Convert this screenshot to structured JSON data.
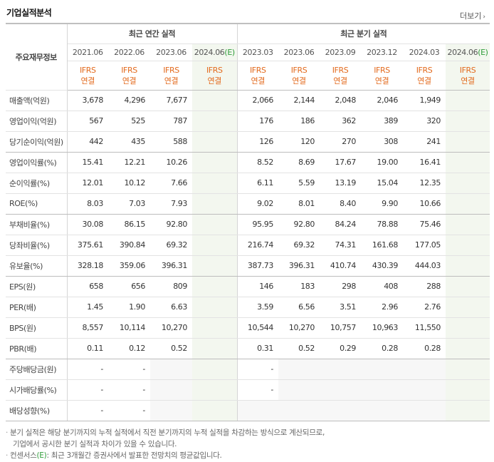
{
  "header": {
    "title": "기업실적분석",
    "more_label": "더보기"
  },
  "table": {
    "corner_label": "주요재무정보",
    "annual_group": "최근 연간 실적",
    "quarter_group": "최근 분기 실적",
    "annual_periods": [
      "2021.06",
      "2022.06",
      "2023.06",
      "2024.06"
    ],
    "quarter_periods": [
      "2023.03",
      "2023.06",
      "2023.09",
      "2023.12",
      "2024.03",
      "2024.06"
    ],
    "estimate_mark": "(E)",
    "ifrs_label": "IFRS",
    "basis_label": "연결",
    "rows": [
      {
        "label": "매출액(억원)",
        "annual": [
          "3,678",
          "4,296",
          "7,677",
          ""
        ],
        "quarter": [
          "2,066",
          "2,144",
          "2,048",
          "2,046",
          "1,949",
          ""
        ]
      },
      {
        "label": "영업이익(억원)",
        "annual": [
          "567",
          "525",
          "787",
          ""
        ],
        "quarter": [
          "176",
          "186",
          "362",
          "389",
          "320",
          ""
        ]
      },
      {
        "label": "당기순이익(억원)",
        "annual": [
          "442",
          "435",
          "588",
          ""
        ],
        "quarter": [
          "126",
          "120",
          "270",
          "308",
          "241",
          ""
        ]
      },
      {
        "label": "영업이익률(%)",
        "annual": [
          "15.41",
          "12.21",
          "10.26",
          ""
        ],
        "quarter": [
          "8.52",
          "8.69",
          "17.67",
          "19.00",
          "16.41",
          ""
        ]
      },
      {
        "label": "순이익률(%)",
        "annual": [
          "12.01",
          "10.12",
          "7.66",
          ""
        ],
        "quarter": [
          "6.11",
          "5.59",
          "13.19",
          "15.04",
          "12.35",
          ""
        ]
      },
      {
        "label": "ROE(%)",
        "annual": [
          "8.03",
          "7.03",
          "7.93",
          ""
        ],
        "quarter": [
          "9.02",
          "8.01",
          "8.40",
          "9.90",
          "10.66",
          ""
        ]
      },
      {
        "label": "부채비율(%)",
        "annual": [
          "30.08",
          "86.15",
          "92.80",
          ""
        ],
        "quarter": [
          "95.95",
          "92.80",
          "84.24",
          "78.88",
          "75.46",
          ""
        ]
      },
      {
        "label": "당좌비율(%)",
        "annual": [
          "375.61",
          "390.84",
          "69.32",
          ""
        ],
        "quarter": [
          "216.74",
          "69.32",
          "74.31",
          "161.68",
          "177.05",
          ""
        ]
      },
      {
        "label": "유보율(%)",
        "annual": [
          "328.18",
          "359.06",
          "396.31",
          ""
        ],
        "quarter": [
          "387.73",
          "396.31",
          "410.74",
          "430.39",
          "444.03",
          ""
        ]
      },
      {
        "label": "EPS(원)",
        "annual": [
          "658",
          "656",
          "809",
          ""
        ],
        "quarter": [
          "146",
          "183",
          "298",
          "408",
          "288",
          ""
        ]
      },
      {
        "label": "PER(배)",
        "annual": [
          "1.45",
          "1.90",
          "6.63",
          ""
        ],
        "quarter": [
          "3.59",
          "6.56",
          "3.51",
          "2.96",
          "2.76",
          ""
        ]
      },
      {
        "label": "BPS(원)",
        "annual": [
          "8,557",
          "10,114",
          "10,270",
          ""
        ],
        "quarter": [
          "10,544",
          "10,270",
          "10,757",
          "10,963",
          "11,550",
          ""
        ]
      },
      {
        "label": "PBR(배)",
        "annual": [
          "0.11",
          "0.12",
          "0.52",
          ""
        ],
        "quarter": [
          "0.31",
          "0.52",
          "0.29",
          "0.28",
          "0.28",
          ""
        ]
      },
      {
        "label": "주당배당금(원)",
        "annual": [
          "-",
          "-",
          "",
          ""
        ],
        "quarter": [
          "-",
          "",
          "",
          "",
          "",
          ""
        ]
      },
      {
        "label": "시가배당률(%)",
        "annual": [
          "-",
          "-",
          "",
          ""
        ],
        "quarter": [
          "-",
          "",
          "",
          "",
          "",
          ""
        ]
      },
      {
        "label": "배당성향(%)",
        "annual": [
          "-",
          "-",
          "",
          ""
        ],
        "quarter": [
          "",
          "",
          "",
          "",
          "",
          ""
        ]
      }
    ]
  },
  "notes": {
    "line1": "분기 실적은 해당 분기까지의 누적 실적에서 직전 분기까지의 누적 실적을 차감하는 방식으로 계산되므로,",
    "line2": "기업에서 공시한 분기 실적과 차이가 있을 수 있습니다.",
    "line3_prefix": "컨센서스",
    "line3_mark": "(E)",
    "line3_rest": ": 최근 3개월간 증권사에서 발표한 전망치의 평균값입니다."
  }
}
